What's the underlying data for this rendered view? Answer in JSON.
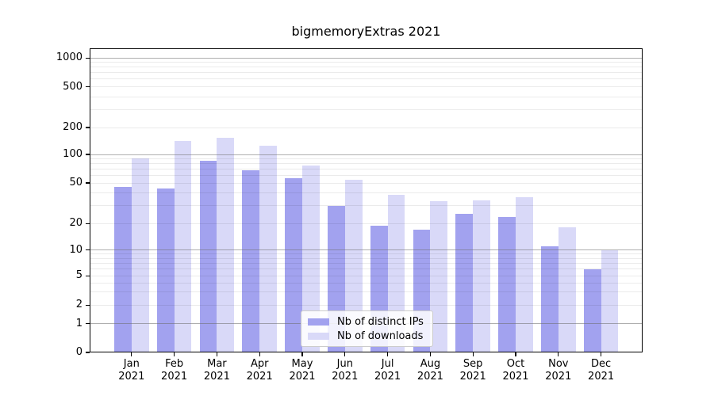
{
  "chart_data": {
    "type": "bar",
    "title": "bigmemoryExtras 2021",
    "scale": "symlog",
    "categories": [
      "Jan 2021",
      "Feb 2021",
      "Mar 2021",
      "Apr 2021",
      "May 2021",
      "Jun 2021",
      "Jul 2021",
      "Aug 2021",
      "Sep 2021",
      "Oct 2021",
      "Nov 2021",
      "Dec 2021"
    ],
    "months": [
      "Jan",
      "Feb",
      "Mar",
      "Apr",
      "May",
      "Jun",
      "Jul",
      "Aug",
      "Sep",
      "Oct",
      "Nov",
      "Dec"
    ],
    "year_label": "2021",
    "series": [
      {
        "name": "Nb of distinct IPs",
        "values": [
          46,
          44,
          86,
          68,
          56,
          30,
          19,
          17,
          25,
          23,
          11,
          6
        ]
      },
      {
        "name": "Nb of downloads",
        "values": [
          90,
          142,
          155,
          125,
          77,
          54,
          38,
          33,
          34,
          36,
          18,
          10
        ]
      }
    ],
    "yticks": [
      0,
      1,
      2,
      5,
      10,
      20,
      50,
      100,
      200,
      500,
      1000
    ],
    "ylim": [
      0,
      1000
    ],
    "grid": true,
    "legend_position": "bottom-center",
    "colors": {
      "distinct_ips": "#a2a2ef",
      "downloads": "#d9d9f8",
      "major_grid": "#6e6e6e",
      "minor_grid": "#e8e8e8"
    }
  }
}
